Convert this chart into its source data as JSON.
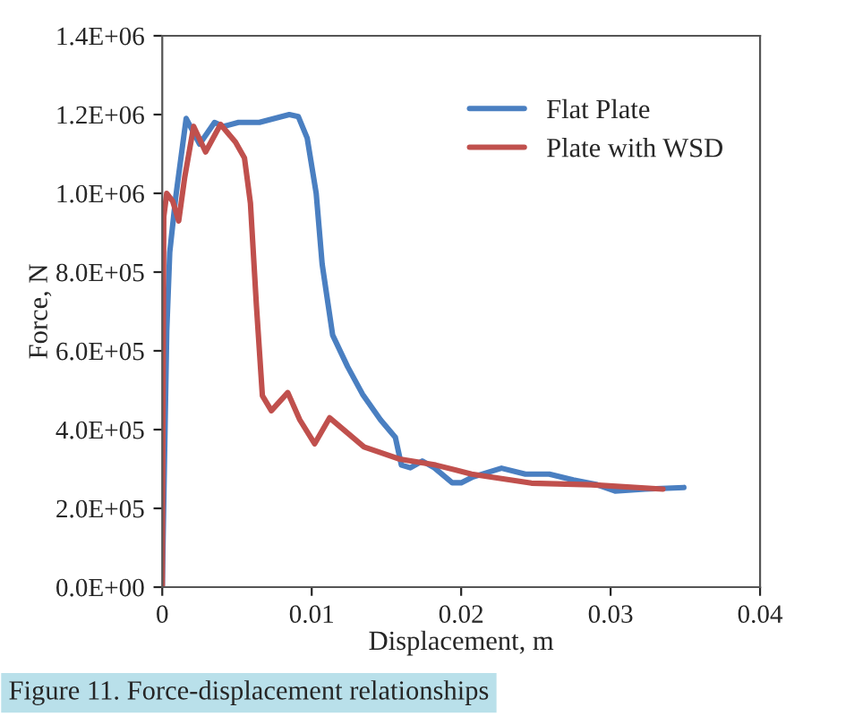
{
  "chart_data": {
    "type": "line",
    "xlabel": "Displacement, m",
    "ylabel": "Force, N",
    "annotations": [
      "Figure 11. Force-displacement relationships"
    ],
    "xlim": [
      0,
      0.04
    ],
    "xticks": [
      0,
      0.01,
      0.02,
      0.03,
      0.04
    ],
    "ylim": [
      0,
      1400000
    ],
    "yticks": [
      {
        "value": 0,
        "label": "0.0E+00"
      },
      {
        "value": 200000,
        "label": "2.0E+05"
      },
      {
        "value": 400000,
        "label": "4.0E+05"
      },
      {
        "value": 600000,
        "label": "6.0E+05"
      },
      {
        "value": 800000,
        "label": "8.0E+05"
      },
      {
        "value": 1000000,
        "label": "1.0E+06"
      },
      {
        "value": 1200000,
        "label": "1.2E+06"
      },
      {
        "value": 1400000,
        "label": "1.4E+06"
      }
    ],
    "grid": false,
    "legend": "top right",
    "marker": "none",
    "line_style": "solid",
    "series": [
      {
        "name": "Flat Plate",
        "color": "#4a7fc1",
        "x": [
          0,
          0.0003,
          0.0005,
          0.0009,
          0.0016,
          0.0025,
          0.0035,
          0.0041,
          0.0051,
          0.0065,
          0.0085,
          0.0091,
          0.0097,
          0.0103,
          0.0107,
          0.0114,
          0.0124,
          0.0134,
          0.0146,
          0.0156,
          0.016,
          0.0166,
          0.0174,
          0.0182,
          0.0194,
          0.02,
          0.0208,
          0.0227,
          0.0243,
          0.0259,
          0.0275,
          0.0291,
          0.0303,
          0.0323,
          0.0349
        ],
        "values": [
          0,
          650000,
          850000,
          990000,
          1190000,
          1125000,
          1180000,
          1170000,
          1180000,
          1180000,
          1200000,
          1195000,
          1140000,
          1000000,
          820000,
          640000,
          560000,
          490000,
          425000,
          380000,
          310000,
          303000,
          320000,
          303000,
          265000,
          265000,
          280000,
          302000,
          287000,
          287000,
          272000,
          260000,
          244000,
          249000,
          253000
        ]
      },
      {
        "name": "Plate with WSD",
        "color": "#c0504d",
        "x": [
          0,
          0.0001,
          0.0003,
          0.0007,
          0.0011,
          0.0015,
          0.0021,
          0.0029,
          0.0039,
          0.0049,
          0.0055,
          0.0059,
          0.0063,
          0.0067,
          0.0073,
          0.0084,
          0.0092,
          0.0102,
          0.0112,
          0.0135,
          0.0159,
          0.0183,
          0.0207,
          0.0247,
          0.0287,
          0.0335
        ],
        "values": [
          0,
          940000,
          1000000,
          980000,
          930000,
          1040000,
          1170000,
          1105000,
          1175000,
          1130000,
          1090000,
          975000,
          715000,
          486000,
          448000,
          494000,
          425000,
          364000,
          430000,
          356000,
          325000,
          310000,
          287000,
          264000,
          260000,
          249000
        ]
      }
    ]
  }
}
